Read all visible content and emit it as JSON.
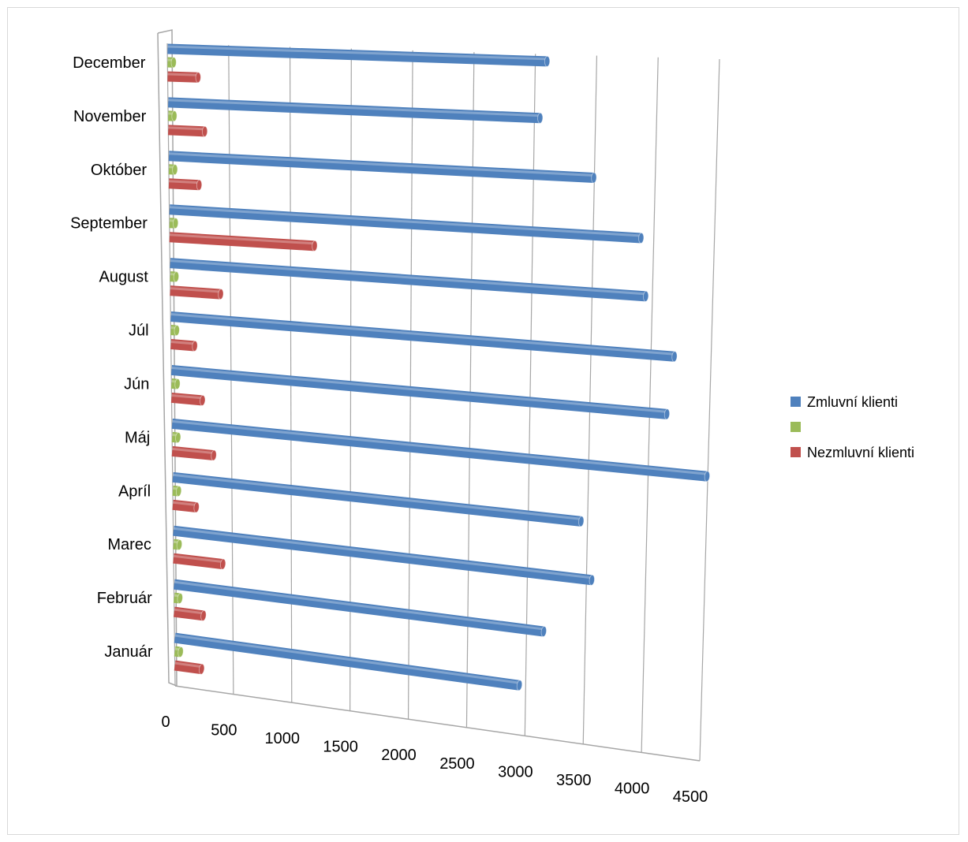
{
  "chart_data": {
    "type": "bar",
    "orientation": "horizontal",
    "style": "3d-cylinder",
    "title": "",
    "xlabel": "",
    "ylabel": "",
    "categories": [
      "Január",
      "Február",
      "Marec",
      "Apríl",
      "Máj",
      "Jún",
      "Júl",
      "August",
      "September",
      "Október",
      "November",
      "December"
    ],
    "series": [
      {
        "name": "Zmluvní klienti",
        "color": "#4f81bd",
        "values": [
          2950,
          3150,
          3550,
          3450,
          4500,
          4150,
          4200,
          3950,
          3900,
          3500,
          3050,
          3100
        ]
      },
      {
        "name": "",
        "color": "#9bbb59",
        "values": [
          50,
          50,
          50,
          50,
          50,
          50,
          50,
          50,
          50,
          50,
          50,
          50
        ]
      },
      {
        "name": "Nezmluvní klienti",
        "color": "#c0504d",
        "values": [
          230,
          250,
          420,
          200,
          350,
          260,
          200,
          420,
          1200,
          250,
          300,
          250
        ]
      }
    ],
    "ticks": [
      "0",
      "500",
      "1000",
      "1500",
      "2000",
      "2500",
      "3000",
      "3500",
      "4000",
      "4500"
    ],
    "xlim": [
      0,
      4500
    ],
    "grid": true,
    "legend": "right"
  }
}
